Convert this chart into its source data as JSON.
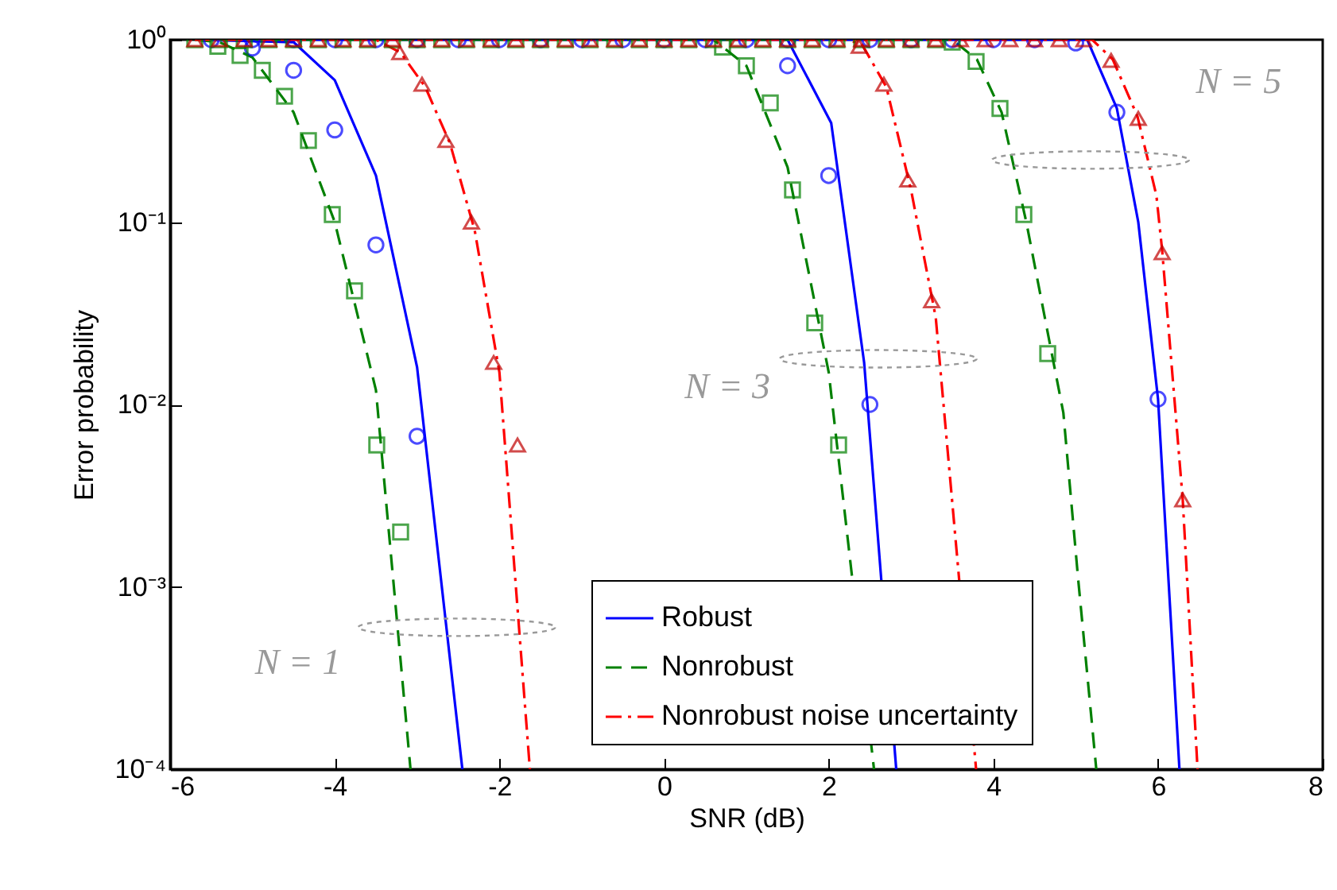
{
  "chart_data": {
    "type": "line",
    "xlabel": "SNR (dB)",
    "ylabel": "Error probability",
    "log": "y",
    "grid": false,
    "legend": "bottom right",
    "xlim": [
      -6,
      8
    ],
    "xticks": [
      -6,
      -4,
      -2,
      0,
      2,
      4,
      6,
      8
    ],
    "ylim": [
      0.0001,
      1
    ],
    "yticks": [
      {
        "value": 0.0001,
        "label": "10⁻⁴"
      },
      {
        "value": 0.001,
        "label": "10⁻³"
      },
      {
        "value": 0.01,
        "label": "10⁻²"
      },
      {
        "value": 0.1,
        "label": "10⁻¹"
      },
      {
        "value": 1,
        "label": "10⁰"
      }
    ],
    "annotations": [
      "N = 1",
      "N = 3",
      "N = 5"
    ],
    "series": [
      {
        "name": "Robust",
        "color": "#0000ff",
        "line_style": "solid",
        "marker": "none",
        "x": [
          -5.7,
          -4.5,
          -4.0,
          -3.5,
          -3.0,
          -2.45,
          null,
          -5.7,
          1.5,
          2.03,
          2.43,
          2.82,
          null,
          -5.7,
          5.14,
          5.5,
          5.76,
          6.0,
          6.26
        ],
        "values": [
          1,
          0.97,
          0.6,
          0.18,
          0.016,
          0.0001,
          null,
          1,
          1,
          0.35,
          0.017,
          0.0001,
          null,
          1,
          1,
          0.42,
          0.1,
          0.0107,
          0.0001
        ]
      },
      {
        "name": "Nonrobust",
        "color": "#008000",
        "line_style": "dashed",
        "marker": "none",
        "x": [
          -5.7,
          -5.4,
          -5.0,
          -4.5,
          -4.0,
          -3.5,
          -3.08,
          null,
          -5.7,
          0.6,
          1.0,
          1.5,
          2.0,
          2.55,
          null,
          -5.7,
          3.5,
          3.8,
          4.1,
          4.4,
          4.7,
          4.85,
          5.03,
          5.25
        ],
        "values": [
          1,
          0.97,
          0.8,
          0.4,
          0.1,
          0.012,
          0.0001,
          null,
          1,
          1,
          0.72,
          0.2,
          0.015,
          0.0001,
          null,
          1,
          1,
          0.78,
          0.4,
          0.1,
          0.02,
          0.009,
          0.0011,
          0.0001
        ]
      },
      {
        "name": "Nonrobust noise uncertainty",
        "color": "#ff0000",
        "line_style": "dashdot",
        "marker": "none",
        "x": [
          -5.7,
          -3.5,
          -3.2,
          -2.9,
          -2.6,
          -2.3,
          -2.0,
          -1.63,
          null,
          -5.7,
          2.2,
          2.4,
          2.7,
          3.0,
          3.3,
          3.79,
          null,
          -5.7,
          5.2,
          5.45,
          5.75,
          5.98,
          6.05,
          6.3,
          6.48
        ],
        "values": [
          1,
          1,
          0.85,
          0.55,
          0.27,
          0.09,
          0.015,
          0.0001,
          null,
          1,
          1,
          0.95,
          0.55,
          0.15,
          0.03,
          0.0001,
          null,
          1,
          1,
          0.78,
          0.38,
          0.14,
          0.07,
          0.003,
          0.0001
        ]
      },
      {
        "type": "scatter",
        "color": "#0000ff",
        "marker": "circle",
        "x": [
          -5.5,
          -5.0,
          -4.5,
          -4.0,
          -3.5,
          -3.0,
          -2.5,
          -2.0,
          -1.5,
          -1.0,
          -0.5,
          0.0,
          0.5,
          1.0,
          1.5,
          2.0,
          2.5,
          3.0,
          3.5,
          4.0,
          4.5,
          -5.0,
          -4.5,
          -4.0,
          -3.5,
          -3.0,
          1.5,
          2.0,
          2.5,
          5.0,
          5.5,
          6.0
        ],
        "values": [
          1,
          1,
          1,
          1,
          1,
          1,
          1,
          1,
          1,
          1,
          1,
          1,
          1,
          1,
          1,
          1,
          1,
          1,
          1,
          1,
          1,
          0.9,
          0.68,
          0.32,
          0.075,
          0.0067,
          0.72,
          0.18,
          0.01,
          0.96,
          0.4,
          0.0107
        ]
      },
      {
        "type": "scatter",
        "color": "#008000",
        "marker": "square",
        "x": [
          -5.7,
          -5.4,
          -5.1,
          -4.8,
          -4.5,
          -4.2,
          -3.9,
          -3.6,
          -3.3,
          -3.0,
          -2.7,
          -2.4,
          -2.1,
          -1.8,
          -1.5,
          -1.2,
          -0.9,
          -0.6,
          -0.3,
          0.0,
          0.3,
          0.6,
          0.9,
          1.2,
          1.5,
          1.8,
          2.1,
          2.4,
          2.7,
          3.0,
          3.3,
          -5.42,
          -5.15,
          -4.88,
          -4.61,
          -4.32,
          -4.03,
          -3.76,
          -3.49,
          -3.2,
          0.71,
          1.0,
          1.29,
          1.56,
          1.83,
          2.12,
          3.5,
          3.79,
          4.08,
          4.37,
          4.66
        ],
        "values": [
          1,
          1,
          1,
          1,
          1,
          1,
          1,
          1,
          1,
          1,
          1,
          1,
          1,
          1,
          1,
          1,
          1,
          1,
          1,
          1,
          1,
          1,
          1,
          1,
          1,
          1,
          1,
          1,
          1,
          1,
          1,
          0.92,
          0.82,
          0.68,
          0.49,
          0.28,
          0.11,
          0.042,
          0.006,
          0.002,
          0.91,
          0.72,
          0.45,
          0.15,
          0.028,
          0.006,
          0.97,
          0.76,
          0.42,
          0.11,
          0.019
        ]
      },
      {
        "type": "scatter",
        "color": "#c00000",
        "marker": "triangle",
        "x": [
          -5.7,
          -5.4,
          -5.1,
          -4.8,
          -4.5,
          -4.2,
          -3.9,
          -3.6,
          -3.3,
          -3.0,
          -2.7,
          -2.4,
          -2.1,
          -1.8,
          -1.5,
          -1.2,
          -0.9,
          -0.6,
          -0.3,
          0.0,
          0.3,
          0.6,
          0.9,
          1.2,
          1.5,
          1.8,
          2.1,
          2.4,
          2.7,
          3.0,
          3.3,
          3.6,
          3.9,
          4.2,
          4.5,
          4.8,
          5.1,
          -3.21,
          -2.94,
          -2.65,
          -2.34,
          -2.07,
          -1.78,
          2.37,
          2.67,
          2.96,
          3.25,
          5.43,
          5.76,
          6.05,
          6.3
        ],
        "values": [
          1,
          1,
          1,
          1,
          1,
          1,
          1,
          1,
          1,
          1,
          1,
          1,
          1,
          1,
          1,
          1,
          1,
          1,
          1,
          1,
          1,
          1,
          1,
          1,
          1,
          1,
          1,
          1,
          1,
          1,
          1,
          1,
          1,
          1,
          1,
          1,
          1,
          0.85,
          0.57,
          0.28,
          0.1,
          0.017,
          0.006,
          0.92,
          0.57,
          0.17,
          0.037,
          0.77,
          0.37,
          0.068,
          0.003
        ]
      }
    ]
  }
}
